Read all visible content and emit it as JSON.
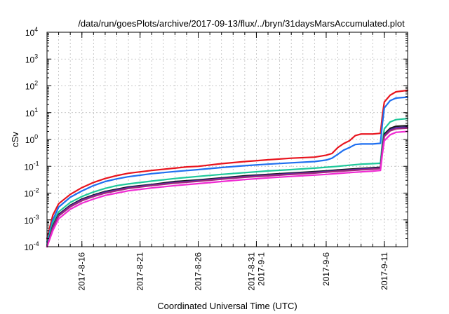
{
  "chart_data": {
    "type": "line",
    "title": "/data/run/goesPlots/archive/2017-09-13/flux/../bryn/31daysMarsAccumulated.plot",
    "xlabel": "Coordinated Universal Time (UTC)",
    "ylabel": "cSv",
    "yscale": "log",
    "ylim": [
      0.0001,
      10000
    ],
    "xlim": [
      "2017-08-13",
      "2017-09-13"
    ],
    "grid": true,
    "x_ticks": [
      {
        "date": "2017-08-16",
        "lines": [
          "2017-8-16"
        ]
      },
      {
        "date": "2017-08-21",
        "lines": [
          "2017-8-21"
        ]
      },
      {
        "date": "2017-08-26",
        "lines": [
          "2017-8-26"
        ]
      },
      {
        "date": "2017-08-31",
        "lines": [
          "2017-8-31",
          "2017-9-1"
        ]
      },
      {
        "date": "2017-09-06",
        "lines": [
          "2017-9-6"
        ]
      },
      {
        "date": "2017-09-11",
        "lines": [
          "2017-9-11"
        ]
      }
    ],
    "y_ticks": [
      {
        "value": 0.0001,
        "exp": "-4"
      },
      {
        "value": 0.001,
        "exp": "-3"
      },
      {
        "value": 0.01,
        "exp": "-2"
      },
      {
        "value": 0.1,
        "exp": "-1"
      },
      {
        "value": 1,
        "exp": "0"
      },
      {
        "value": 10,
        "exp": "1"
      },
      {
        "value": 100,
        "exp": "2"
      },
      {
        "value": 1000,
        "exp": "3"
      },
      {
        "value": 10000,
        "exp": "4"
      }
    ],
    "series": [
      {
        "color": "#e8141e",
        "points": [
          [
            "2017-08-13",
            0.0002
          ],
          [
            "2017-08-13 12:00",
            0.0015
          ],
          [
            "2017-08-14",
            0.004
          ],
          [
            "2017-08-15",
            0.009
          ],
          [
            "2017-08-16",
            0.016
          ],
          [
            "2017-08-17",
            0.025
          ],
          [
            "2017-08-18",
            0.035
          ],
          [
            "2017-08-19",
            0.045
          ],
          [
            "2017-08-20",
            0.055
          ],
          [
            "2017-08-22",
            0.07
          ],
          [
            "2017-08-24",
            0.085
          ],
          [
            "2017-08-25",
            0.095
          ],
          [
            "2017-08-26",
            0.1
          ],
          [
            "2017-08-28",
            0.125
          ],
          [
            "2017-08-30",
            0.15
          ],
          [
            "2017-09-01",
            0.175
          ],
          [
            "2017-09-03",
            0.2
          ],
          [
            "2017-09-05",
            0.22
          ],
          [
            "2017-09-06",
            0.26
          ],
          [
            "2017-09-06 12:00",
            0.3
          ],
          [
            "2017-09-07",
            0.5
          ],
          [
            "2017-09-07 12:00",
            0.7
          ],
          [
            "2017-09-08",
            0.9
          ],
          [
            "2017-09-08 12:00",
            1.4
          ],
          [
            "2017-09-09",
            1.6
          ],
          [
            "2017-09-10",
            1.6
          ],
          [
            "2017-09-10 16:00",
            1.7
          ],
          [
            "2017-09-10 20:00",
            8
          ],
          [
            "2017-09-11",
            25
          ],
          [
            "2017-09-11 12:00",
            45
          ],
          [
            "2017-09-12",
            60
          ],
          [
            "2017-09-13",
            68
          ]
        ]
      },
      {
        "color": "#1f6ff0",
        "points": [
          [
            "2017-08-13",
            0.00015
          ],
          [
            "2017-08-13 12:00",
            0.001
          ],
          [
            "2017-08-14",
            0.003
          ],
          [
            "2017-08-15",
            0.007
          ],
          [
            "2017-08-16",
            0.012
          ],
          [
            "2017-08-17",
            0.019
          ],
          [
            "2017-08-18",
            0.027
          ],
          [
            "2017-08-19",
            0.034
          ],
          [
            "2017-08-20",
            0.041
          ],
          [
            "2017-08-22",
            0.053
          ],
          [
            "2017-08-24",
            0.064
          ],
          [
            "2017-08-26",
            0.075
          ],
          [
            "2017-08-28",
            0.09
          ],
          [
            "2017-08-30",
            0.105
          ],
          [
            "2017-09-01",
            0.12
          ],
          [
            "2017-09-03",
            0.135
          ],
          [
            "2017-09-05",
            0.15
          ],
          [
            "2017-09-06",
            0.17
          ],
          [
            "2017-09-06 12:00",
            0.2
          ],
          [
            "2017-09-07",
            0.28
          ],
          [
            "2017-09-07 12:00",
            0.4
          ],
          [
            "2017-09-08",
            0.5
          ],
          [
            "2017-09-08 12:00",
            0.65
          ],
          [
            "2017-09-09",
            0.68
          ],
          [
            "2017-09-10",
            0.68
          ],
          [
            "2017-09-10 16:00",
            0.72
          ],
          [
            "2017-09-10 20:00",
            4
          ],
          [
            "2017-09-11",
            15
          ],
          [
            "2017-09-11 12:00",
            28
          ],
          [
            "2017-09-12",
            35
          ],
          [
            "2017-09-13",
            38
          ]
        ]
      },
      {
        "color": "#1ec89a",
        "points": [
          [
            "2017-08-13",
            0.00012
          ],
          [
            "2017-08-13 12:00",
            0.0008
          ],
          [
            "2017-08-14",
            0.002
          ],
          [
            "2017-08-15",
            0.0045
          ],
          [
            "2017-08-16",
            0.0075
          ],
          [
            "2017-08-17",
            0.011
          ],
          [
            "2017-08-18",
            0.015
          ],
          [
            "2017-08-19",
            0.019
          ],
          [
            "2017-08-20",
            0.022
          ],
          [
            "2017-08-22",
            0.028
          ],
          [
            "2017-08-24",
            0.035
          ],
          [
            "2017-08-26",
            0.042
          ],
          [
            "2017-08-28",
            0.05
          ],
          [
            "2017-08-30",
            0.058
          ],
          [
            "2017-09-01",
            0.067
          ],
          [
            "2017-09-03",
            0.075
          ],
          [
            "2017-09-05",
            0.085
          ],
          [
            "2017-09-06",
            0.092
          ],
          [
            "2017-09-07",
            0.1
          ],
          [
            "2017-09-08",
            0.11
          ],
          [
            "2017-09-09",
            0.12
          ],
          [
            "2017-09-10",
            0.125
          ],
          [
            "2017-09-10 16:00",
            0.13
          ],
          [
            "2017-09-10 20:00",
            0.8
          ],
          [
            "2017-09-11",
            2.5
          ],
          [
            "2017-09-11 12:00",
            4.5
          ],
          [
            "2017-09-12",
            5.5
          ],
          [
            "2017-09-13",
            6
          ]
        ]
      },
      {
        "color": "#1a1a1a",
        "points": [
          [
            "2017-08-13",
            0.0001
          ],
          [
            "2017-08-13 12:00",
            0.0006
          ],
          [
            "2017-08-14",
            0.0016
          ],
          [
            "2017-08-15",
            0.0035
          ],
          [
            "2017-08-16",
            0.006
          ],
          [
            "2017-08-17",
            0.0085
          ],
          [
            "2017-08-18",
            0.0115
          ],
          [
            "2017-08-19",
            0.014
          ],
          [
            "2017-08-20",
            0.017
          ],
          [
            "2017-08-22",
            0.021
          ],
          [
            "2017-08-24",
            0.027
          ],
          [
            "2017-08-26",
            0.031
          ],
          [
            "2017-08-28",
            0.037
          ],
          [
            "2017-08-30",
            0.044
          ],
          [
            "2017-09-01",
            0.05
          ],
          [
            "2017-09-03",
            0.056
          ],
          [
            "2017-09-05",
            0.063
          ],
          [
            "2017-09-06",
            0.067
          ],
          [
            "2017-09-07",
            0.073
          ],
          [
            "2017-09-08",
            0.078
          ],
          [
            "2017-09-09",
            0.083
          ],
          [
            "2017-09-10",
            0.088
          ],
          [
            "2017-09-10 16:00",
            0.092
          ],
          [
            "2017-09-10 20:00",
            0.5
          ],
          [
            "2017-09-11",
            1.6
          ],
          [
            "2017-09-11 12:00",
            2.6
          ],
          [
            "2017-09-12",
            3.1
          ],
          [
            "2017-09-13",
            3.3
          ]
        ]
      },
      {
        "color": "#4b2aa8",
        "points": [
          [
            "2017-08-13",
            0.0001
          ],
          [
            "2017-08-13 12:00",
            0.00055
          ],
          [
            "2017-08-14",
            0.0015
          ],
          [
            "2017-08-15",
            0.0033
          ],
          [
            "2017-08-16",
            0.0056
          ],
          [
            "2017-08-17",
            0.008
          ],
          [
            "2017-08-18",
            0.0108
          ],
          [
            "2017-08-19",
            0.013
          ],
          [
            "2017-08-20",
            0.016
          ],
          [
            "2017-08-22",
            0.02
          ],
          [
            "2017-08-24",
            0.025
          ],
          [
            "2017-08-26",
            0.029
          ],
          [
            "2017-08-28",
            0.035
          ],
          [
            "2017-08-30",
            0.041
          ],
          [
            "2017-09-01",
            0.047
          ],
          [
            "2017-09-03",
            0.053
          ],
          [
            "2017-09-05",
            0.059
          ],
          [
            "2017-09-06",
            0.063
          ],
          [
            "2017-09-07",
            0.068
          ],
          [
            "2017-09-08",
            0.073
          ],
          [
            "2017-09-09",
            0.078
          ],
          [
            "2017-09-10",
            0.082
          ],
          [
            "2017-09-10 16:00",
            0.086
          ],
          [
            "2017-09-10 20:00",
            0.45
          ],
          [
            "2017-09-11",
            1.4
          ],
          [
            "2017-09-11 12:00",
            2.3
          ],
          [
            "2017-09-12",
            2.75
          ],
          [
            "2017-09-13",
            2.9
          ]
        ]
      },
      {
        "color": "#a0287a",
        "points": [
          [
            "2017-08-13",
            0.0001
          ],
          [
            "2017-08-13 12:00",
            0.0005
          ],
          [
            "2017-08-14",
            0.0014
          ],
          [
            "2017-08-15",
            0.0031
          ],
          [
            "2017-08-16",
            0.0052
          ],
          [
            "2017-08-17",
            0.0075
          ],
          [
            "2017-08-18",
            0.01
          ],
          [
            "2017-08-19",
            0.0122
          ],
          [
            "2017-08-20",
            0.015
          ],
          [
            "2017-08-22",
            0.019
          ],
          [
            "2017-08-24",
            0.0235
          ],
          [
            "2017-08-26",
            0.0275
          ],
          [
            "2017-08-28",
            0.033
          ],
          [
            "2017-08-30",
            0.039
          ],
          [
            "2017-09-01",
            0.044
          ],
          [
            "2017-09-03",
            0.05
          ],
          [
            "2017-09-05",
            0.056
          ],
          [
            "2017-09-06",
            0.06
          ],
          [
            "2017-09-07",
            0.065
          ],
          [
            "2017-09-08",
            0.069
          ],
          [
            "2017-09-09",
            0.074
          ],
          [
            "2017-09-10",
            0.078
          ],
          [
            "2017-09-10 16:00",
            0.082
          ],
          [
            "2017-09-10 20:00",
            0.42
          ],
          [
            "2017-09-11",
            1.3
          ],
          [
            "2017-09-11 12:00",
            2.1
          ],
          [
            "2017-09-12",
            2.5
          ],
          [
            "2017-09-13",
            2.65
          ]
        ]
      },
      {
        "color": "#f02ad2",
        "points": [
          [
            "2017-08-13",
            0.0001
          ],
          [
            "2017-08-13 12:00",
            0.0004
          ],
          [
            "2017-08-14",
            0.0011
          ],
          [
            "2017-08-15",
            0.0025
          ],
          [
            "2017-08-16",
            0.0042
          ],
          [
            "2017-08-17",
            0.006
          ],
          [
            "2017-08-18",
            0.0082
          ],
          [
            "2017-08-19",
            0.01
          ],
          [
            "2017-08-20",
            0.0122
          ],
          [
            "2017-08-22",
            0.0155
          ],
          [
            "2017-08-24",
            0.019
          ],
          [
            "2017-08-26",
            0.0225
          ],
          [
            "2017-08-28",
            0.027
          ],
          [
            "2017-08-30",
            0.032
          ],
          [
            "2017-09-01",
            0.037
          ],
          [
            "2017-09-03",
            0.042
          ],
          [
            "2017-09-05",
            0.047
          ],
          [
            "2017-09-06",
            0.05
          ],
          [
            "2017-09-07",
            0.054
          ],
          [
            "2017-09-08",
            0.058
          ],
          [
            "2017-09-09",
            0.062
          ],
          [
            "2017-09-10",
            0.066
          ],
          [
            "2017-09-10 16:00",
            0.07
          ],
          [
            "2017-09-10 20:00",
            0.3
          ],
          [
            "2017-09-11",
            0.9
          ],
          [
            "2017-09-11 12:00",
            1.5
          ],
          [
            "2017-09-12",
            1.85
          ],
          [
            "2017-09-13",
            2.0
          ]
        ]
      }
    ]
  }
}
